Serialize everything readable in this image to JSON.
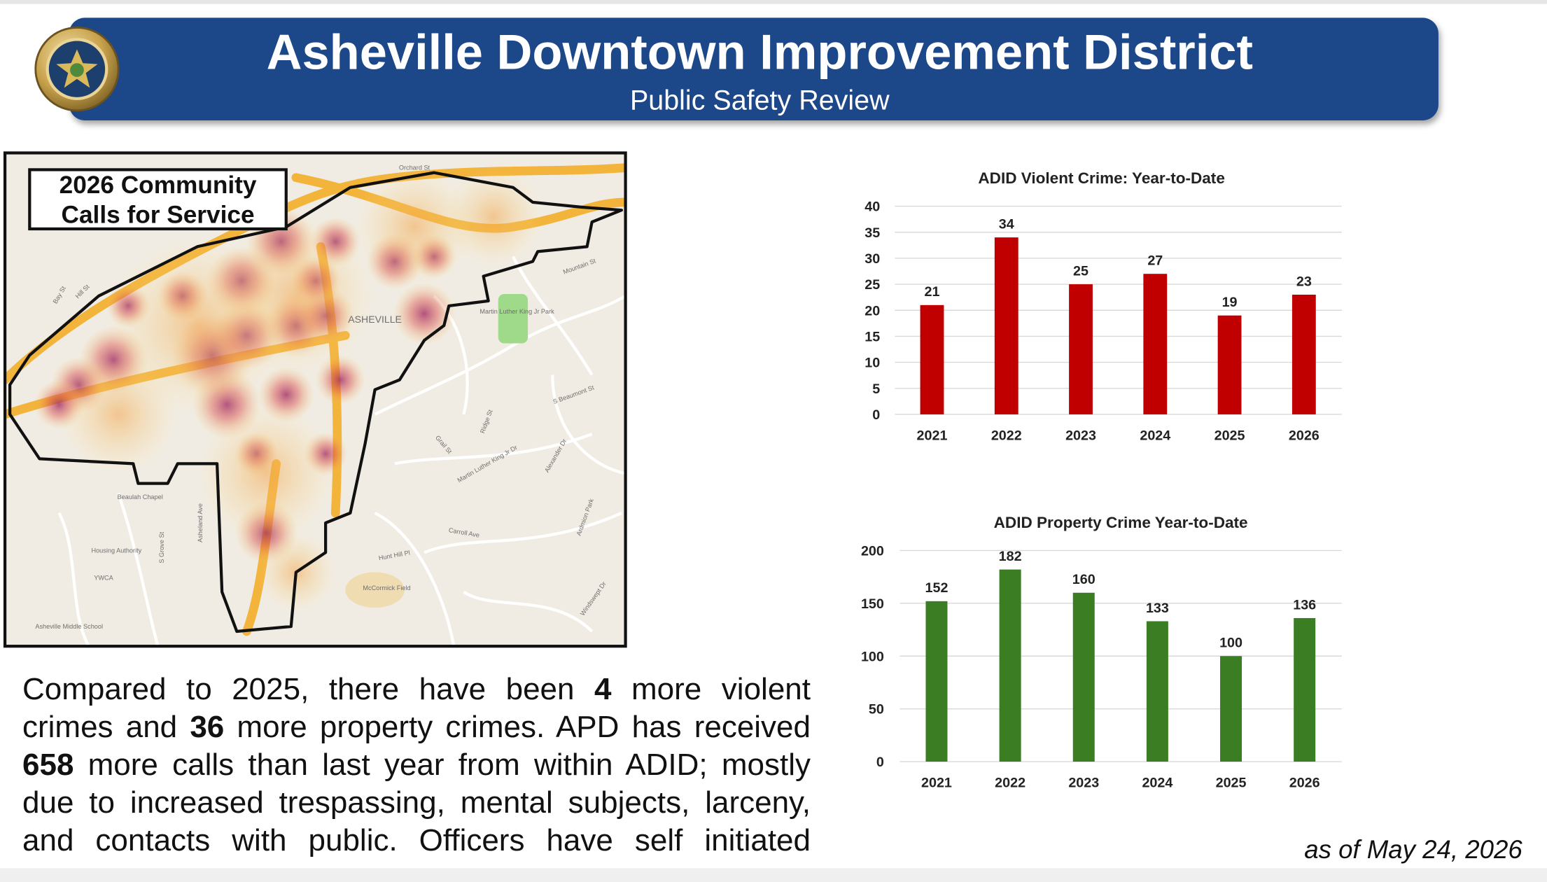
{
  "header": {
    "title": "Asheville Downtown Improvement District",
    "subtitle": "Public Safety Review"
  },
  "map": {
    "title_lines": [
      "2026 Community",
      "Calls for Service"
    ],
    "labels": [
      "Orchard St",
      "Martin Luther King Jr Park",
      "Mountain St",
      "S Beaumont St",
      "Ridge St",
      "Grail St",
      "Alexander Dr",
      "Martin Luther King Jr Dr",
      "Carroll Ave",
      "Hunt Hill Pl",
      "McCormick Field",
      "Ardmion Park",
      "Windswept Dr",
      "Asheland Ave",
      "S Grove St",
      "Beaulah Chapel",
      "YWCA",
      "Bay St",
      "Hill St",
      "ASHEVILLE",
      "Housing Authority",
      "Asheville Middle School"
    ]
  },
  "paragraph": {
    "runs": [
      {
        "text": "Compared to 2025, there have been ",
        "bold": false
      },
      {
        "text": "4",
        "bold": true
      },
      {
        "text": " more violent crimes and ",
        "bold": false
      },
      {
        "text": "36",
        "bold": true
      },
      {
        "text": " more property crimes. APD has received ",
        "bold": false
      },
      {
        "text": "658",
        "bold": true
      },
      {
        "text": " more calls than last year from within ADID; mostly due to increased trespassing, mental subjects, larceny, and contacts with public. Officers have self initiated",
        "bold": false
      }
    ]
  },
  "as_of": "as of May 24, 2026",
  "chart_data": [
    {
      "type": "bar",
      "title": "ADID Violent Crime: Year-to-Date",
      "categories": [
        "2021",
        "2022",
        "2023",
        "2024",
        "2025",
        "2026"
      ],
      "values": [
        21,
        34,
        25,
        27,
        19,
        23
      ],
      "color": "#c00000",
      "ylim": [
        0,
        40
      ],
      "yticks": [
        0,
        5,
        10,
        15,
        20,
        25,
        30,
        35,
        40
      ],
      "grid": true
    },
    {
      "type": "bar",
      "title": "ADID Property Crime Year-to-Date",
      "categories": [
        "2021",
        "2022",
        "2023",
        "2024",
        "2025",
        "2026"
      ],
      "values": [
        152,
        182,
        160,
        133,
        100,
        136
      ],
      "color": "#3a7d23",
      "ylim": [
        0,
        200
      ],
      "yticks": [
        0,
        50,
        100,
        150,
        200
      ],
      "grid": true
    }
  ]
}
